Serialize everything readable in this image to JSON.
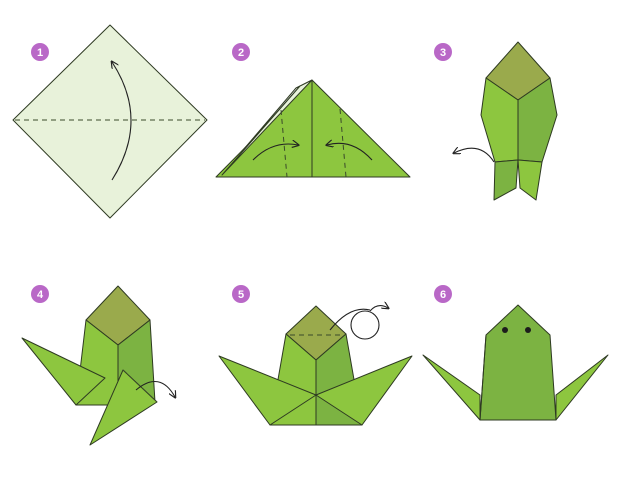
{
  "colors": {
    "badge": "#b968c7",
    "paper_light": "#e8f2da",
    "green_light": "#8dc63f",
    "green_mid": "#7cb342",
    "green_dark": "#9aaa4c",
    "outline": "#2e3a22"
  },
  "steps": [
    {
      "number": "1",
      "description_icon": "square-diamond-fold-icon"
    },
    {
      "number": "2",
      "description_icon": "triangle-fold-icon"
    },
    {
      "number": "3",
      "description_icon": "kite-fold-icon"
    },
    {
      "number": "4",
      "description_icon": "legs-fold-icon"
    },
    {
      "number": "5",
      "description_icon": "head-fold-icon"
    },
    {
      "number": "6",
      "description_icon": "frog-icon"
    }
  ]
}
